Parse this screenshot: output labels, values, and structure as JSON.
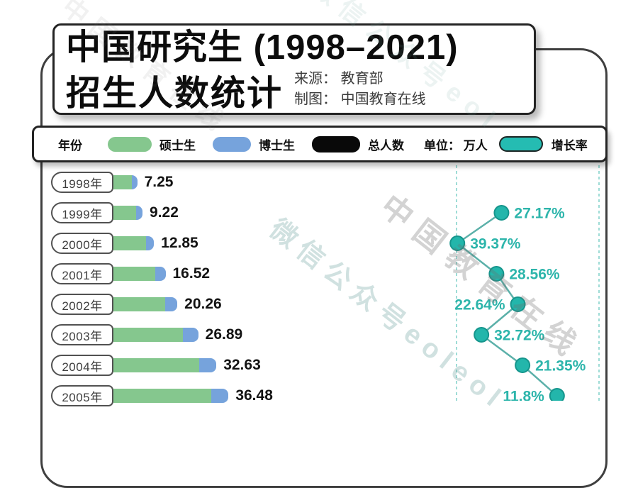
{
  "title": {
    "line1": "中国研究生 (1998–2021)",
    "line2": "招生人数统计",
    "source": "来源： 教育部",
    "credit": "制图： 中国教育在线"
  },
  "legend": {
    "year": "年份",
    "master": "硕士生",
    "doctor": "博士生",
    "total": "总人数",
    "unit": "单位： 万人",
    "growth": "增长率"
  },
  "watermarks": {
    "wm1": "中国教育在线",
    "wm2": "微信公众号eoleol",
    "wm3": "中国教育在线",
    "wm4": "微信公众号eol"
  },
  "colors": {
    "master_bar": "#85c78e",
    "doctor_bar": "#76a3dc",
    "total_pill": "#090909",
    "growth_accent": "#25bcb2",
    "growth_text": "#2db5ab",
    "growth_line": "#5bb0a9",
    "dashed_grid": "#9edcd6"
  },
  "chart_data": [
    {
      "type": "bar",
      "orientation": "horizontal",
      "title": "中国研究生 (1998–2021) 招生人数统计",
      "unit": "万人",
      "categories": [
        "1998年",
        "1999年",
        "2000年",
        "2001年",
        "2002年",
        "2003年",
        "2004年",
        "2005年"
      ],
      "series": [
        {
          "name": "硕士生",
          "color": "#85c78e",
          "values_est": [
            5.75,
            7.23,
            10.34,
            13.31,
            16.43,
            22.02,
            27.3,
            31.0
          ]
        },
        {
          "name": "博士生",
          "color": "#76a3dc",
          "values_est": [
            1.5,
            1.99,
            2.51,
            3.21,
            3.83,
            4.87,
            5.33,
            5.48
          ]
        },
        {
          "name": "总人数",
          "color": "#090909",
          "values": [
            7.25,
            9.22,
            12.85,
            16.52,
            20.26,
            26.89,
            32.63,
            36.48
          ]
        }
      ],
      "value_labels": [
        "7.25",
        "9.22",
        "12.85",
        "16.52",
        "20.26",
        "26.89",
        "32.63",
        "36.48"
      ],
      "note": "visible crop shows rows 1998-2005 of the 1998-2021 ranking; 2005 row partially cut at bottom edge"
    },
    {
      "type": "line",
      "name": "增长率",
      "categories": [
        "1999年",
        "2000年",
        "2001年",
        "2002年",
        "2003年",
        "2004年",
        "2005年"
      ],
      "values": [
        27.17,
        39.37,
        28.56,
        22.64,
        32.72,
        21.35,
        11.8
      ],
      "labels": [
        "27.17%",
        "39.37%",
        "28.56%",
        "22.64%",
        "32.72%",
        "21.35%",
        "11.8%"
      ],
      "label_side": [
        "right",
        "right",
        "right",
        "left",
        "right",
        "right",
        "left"
      ],
      "color": "#2db5ab",
      "axis": "horizontal value axis, 0% at right dashed gridline, 40% at left dashed gridline, increasing leftward"
    }
  ]
}
